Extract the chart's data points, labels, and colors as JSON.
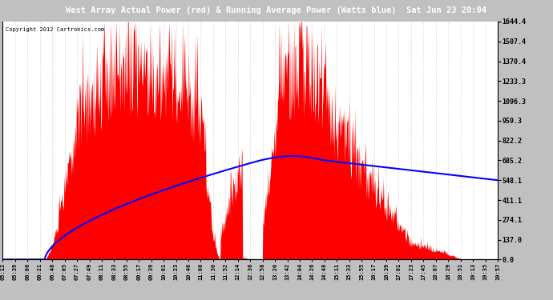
{
  "title": "West Array Actual Power (red) & Running Average Power (Watts blue)  Sat Jun 23 20:04",
  "copyright": "Copyright 2012 Cartronics.com",
  "ylabel_right_ticks": [
    0.0,
    137.0,
    274.1,
    411.1,
    548.1,
    685.2,
    822.2,
    959.3,
    1096.3,
    1233.3,
    1370.4,
    1507.4,
    1644.4
  ],
  "ymax": 1644.4,
  "ymin": 0.0,
  "fill_color": "#ff0000",
  "line_color": "#0000ff",
  "grid_color": "#a0a0a0",
  "x_labels": [
    "05:12",
    "05:39",
    "06:06",
    "06:21",
    "06:48",
    "07:05",
    "07:27",
    "07:49",
    "08:11",
    "08:33",
    "08:55",
    "09:17",
    "09:39",
    "10:01",
    "10:23",
    "10:46",
    "11:08",
    "11:30",
    "11:52",
    "12:14",
    "12:36",
    "12:58",
    "13:20",
    "13:42",
    "14:04",
    "14:26",
    "14:48",
    "15:11",
    "15:33",
    "15:55",
    "16:17",
    "16:39",
    "17:01",
    "17:23",
    "17:45",
    "18:07",
    "18:29",
    "18:51",
    "19:13",
    "19:35",
    "19:57"
  ],
  "n_points": 880
}
